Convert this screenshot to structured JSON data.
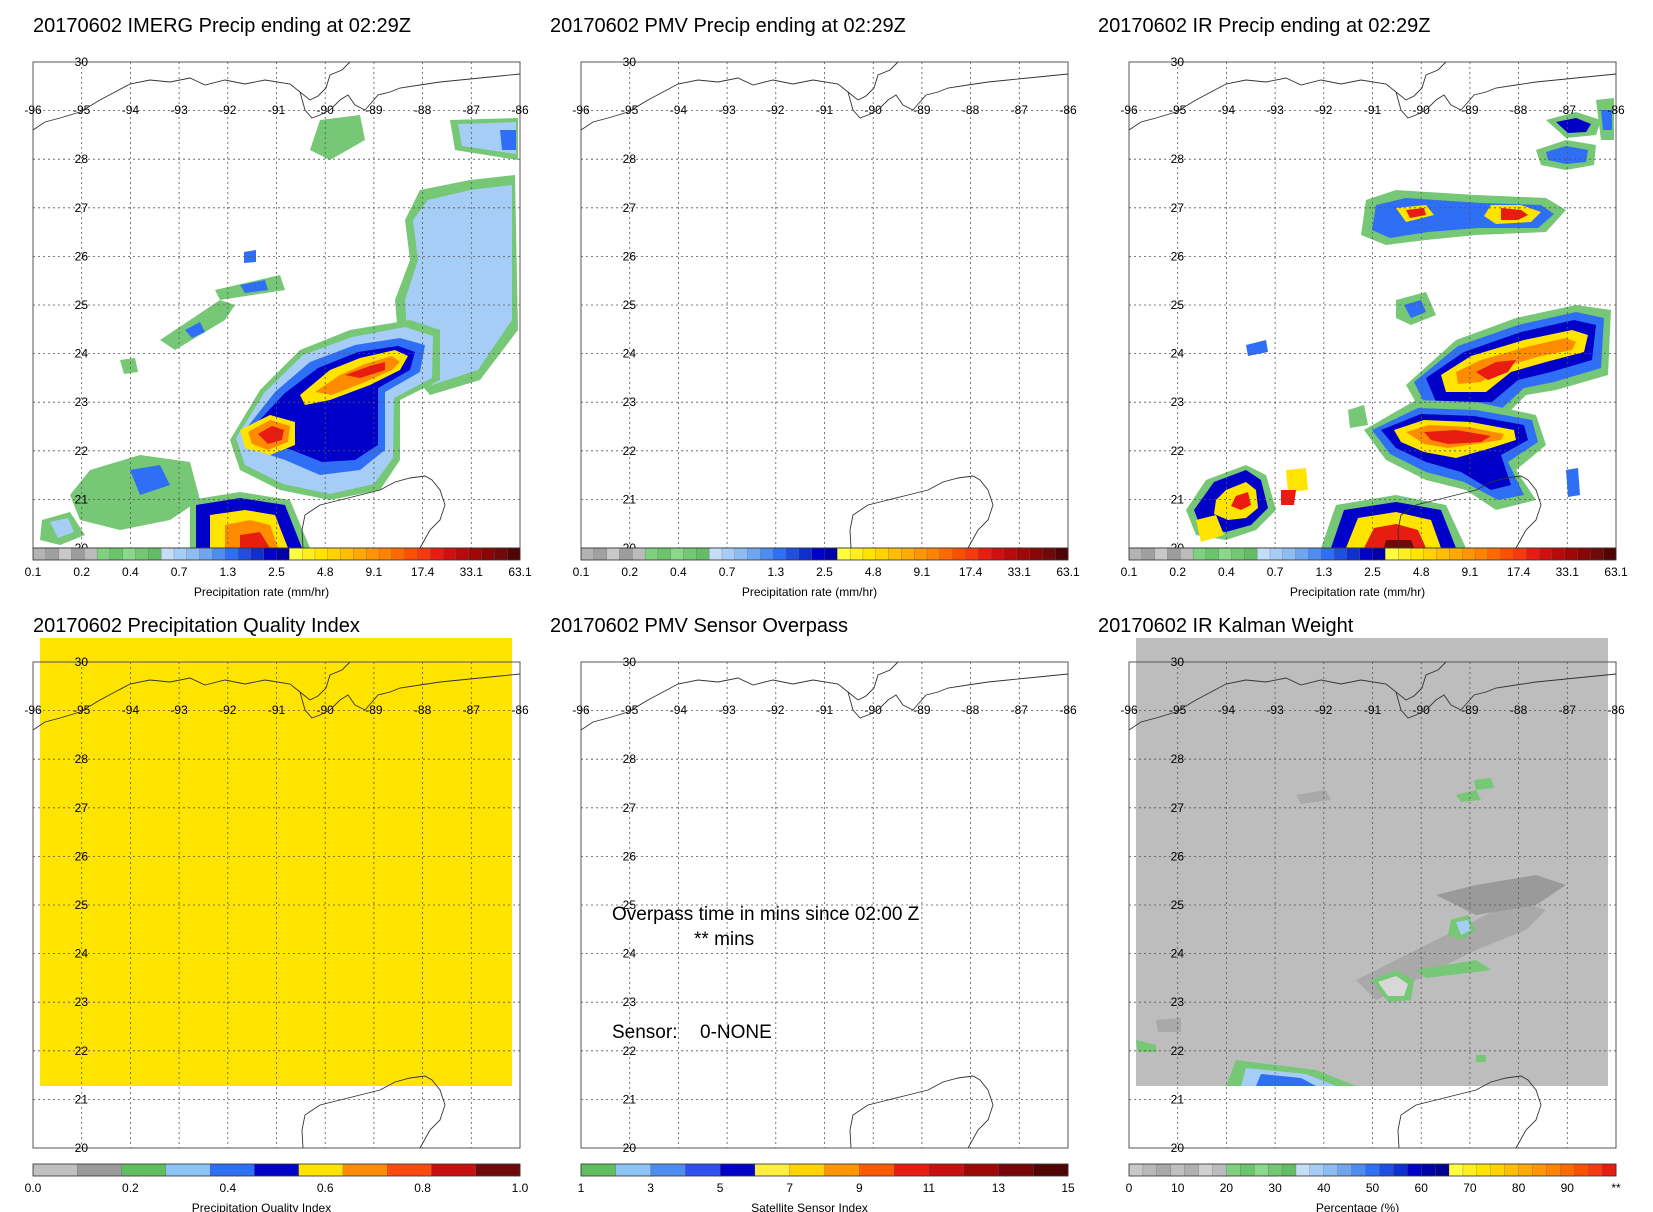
{
  "map": {
    "lon_labels": [
      "-96",
      "-95",
      "-94",
      "-93",
      "-92",
      "-91",
      "-90",
      "-89",
      "-88",
      "-87",
      "-86"
    ],
    "lat_labels": [
      "20",
      "21",
      "22",
      "23",
      "24",
      "25",
      "26",
      "27",
      "28",
      "30"
    ],
    "lon_range": [
      -96,
      -86
    ],
    "lat_range": [
      20,
      30
    ],
    "gridlines": true
  },
  "colors": {
    "missing": "#a9a9a9",
    "light": "#dcdcdc",
    "green": "#76c776",
    "light_blue": "#a6cdf5",
    "blue": "#2f6ff5",
    "dark_blue": "#0000c8",
    "yellow": "#ffe400",
    "orange": "#ff8c00",
    "red": "#e81c10",
    "dark_red": "#6e0a0a",
    "quality_field": "#ffe400",
    "kalman_field": "#bdbdbd"
  },
  "panels": [
    {
      "id": "imerg",
      "title": "20170602 IMERG Precip ending at 02:29Z",
      "colorbar_label": "Precipitation rate (mm/hr)",
      "colorbar_ticks": [
        "0.1",
        "0.2",
        "0.4",
        "0.7",
        "1.3",
        "2.5",
        "4.8",
        "9.1",
        "17.4",
        "33.1",
        "63.1"
      ]
    },
    {
      "id": "pmv",
      "title": "20170602 PMV Precip ending at 02:29Z",
      "colorbar_label": "Precipitation rate (mm/hr)",
      "colorbar_ticks": [
        "0.1",
        "0.2",
        "0.4",
        "0.7",
        "1.3",
        "2.5",
        "4.8",
        "9.1",
        "17.4",
        "33.1",
        "63.1"
      ]
    },
    {
      "id": "ir",
      "title": "20170602 IR Precip ending at 02:29Z",
      "colorbar_label": "Precipitation rate (mm/hr)",
      "colorbar_ticks": [
        "0.1",
        "0.2",
        "0.4",
        "0.7",
        "1.3",
        "2.5",
        "4.8",
        "9.1",
        "17.4",
        "33.1",
        "63.1"
      ]
    },
    {
      "id": "quality",
      "title": "20170602 Precipitation Quality Index",
      "colorbar_label": "Precipitation Quality Index",
      "colorbar_ticks": [
        "0.0",
        "0.2",
        "0.4",
        "0.6",
        "0.8",
        "1.0"
      ]
    },
    {
      "id": "sensor",
      "title": "20170602 PMV Sensor Overpass",
      "colorbar_label": "Satellite Sensor Index",
      "colorbar_ticks": [
        "1",
        "3",
        "5",
        "7",
        "9",
        "11",
        "13",
        "15"
      ],
      "overpass_text": "Overpass time in mins since 02:00 Z",
      "overpass_mins": "** mins",
      "sensor_label": "Sensor:",
      "sensor_value": "0-NONE"
    },
    {
      "id": "kalman",
      "title": "20170602 IR Kalman Weight",
      "colorbar_label": "Percentage (%)",
      "colorbar_ticks": [
        "0",
        "10",
        "20",
        "30",
        "40",
        "50",
        "60",
        "70",
        "80",
        "90",
        "**"
      ]
    }
  ]
}
